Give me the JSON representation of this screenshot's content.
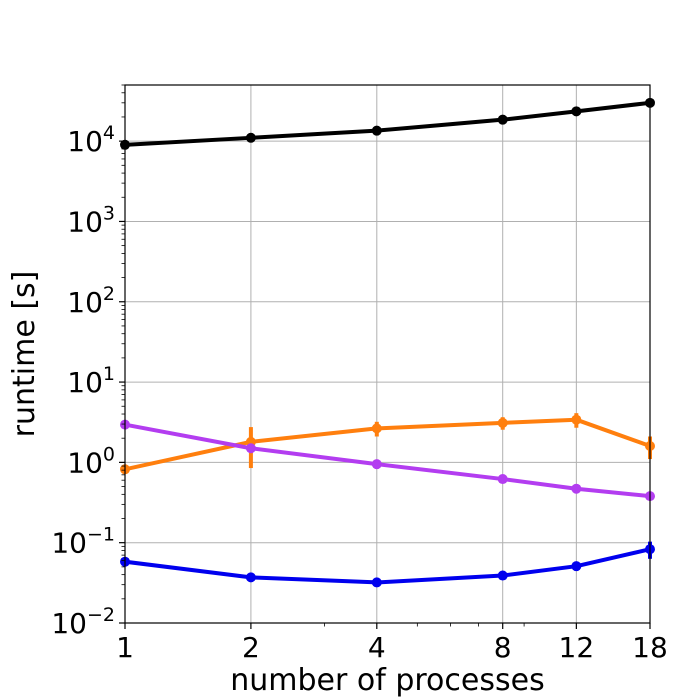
{
  "chart_data": {
    "type": "line",
    "xlabel": "number of processes",
    "ylabel": "runtime [s]",
    "x_scale": "log",
    "y_scale": "log",
    "xlim": [
      1,
      18
    ],
    "ylim": [
      0.01,
      50000
    ],
    "grid": true,
    "x": [
      1,
      2,
      4,
      8,
      12,
      18
    ],
    "x_tick_labels": [
      "1",
      "2",
      "4",
      "8",
      "12",
      "18"
    ],
    "y_ticks": [
      {
        "value": 0.01,
        "base": "10",
        "exp": "−2"
      },
      {
        "value": 0.1,
        "base": "10",
        "exp": "−1"
      },
      {
        "value": 1,
        "base": "10",
        "exp": "0"
      },
      {
        "value": 10,
        "base": "10",
        "exp": "1"
      },
      {
        "value": 100,
        "base": "10",
        "exp": "2"
      },
      {
        "value": 1000,
        "base": "10",
        "exp": "3"
      },
      {
        "value": 10000,
        "base": "10",
        "exp": "4"
      }
    ],
    "series": [
      {
        "color": "#000000",
        "values": [
          9000,
          11000,
          13500,
          18500,
          23500,
          30000
        ],
        "errors": [
          0,
          0,
          0,
          0,
          0,
          0
        ]
      },
      {
        "color": "#ff7f0e",
        "values": [
          0.82,
          1.8,
          2.65,
          3.1,
          3.4,
          1.6
        ],
        "errors": [
          0.1,
          0.95,
          0.55,
          0.55,
          0.7,
          0.5
        ]
      },
      {
        "color": "#b33df0",
        "values": [
          2.95,
          1.5,
          0.95,
          0.62,
          0.47,
          0.38
        ],
        "errors": [
          0,
          0,
          0,
          0,
          0,
          0
        ]
      },
      {
        "color": "#0000ee",
        "values": [
          0.058,
          0.037,
          0.032,
          0.039,
          0.051,
          0.083
        ],
        "errors": [
          0,
          0,
          0,
          0,
          0,
          0.02
        ]
      }
    ]
  }
}
